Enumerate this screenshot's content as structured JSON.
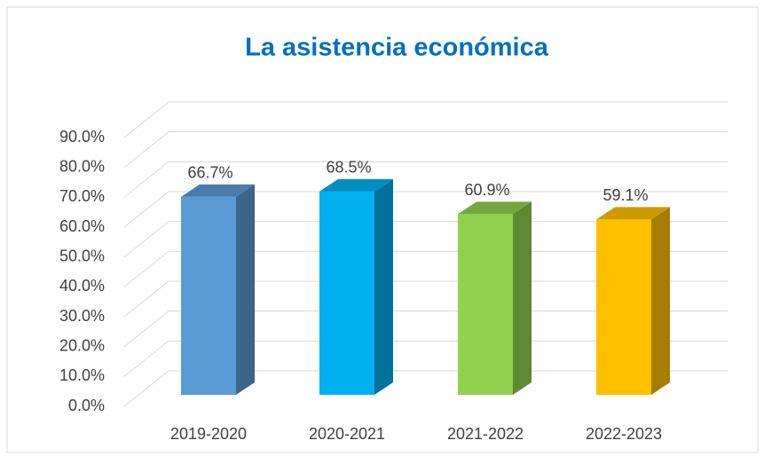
{
  "chart_data": {
    "type": "bar3d",
    "title": "La asistencia económica",
    "categories": [
      "2019-2020",
      "2020-2021",
      "2021-2022",
      "2022-2023"
    ],
    "values": [
      66.7,
      68.5,
      60.9,
      59.1
    ],
    "value_labels": [
      "66.7%",
      "68.5%",
      "60.9%",
      "59.1%"
    ],
    "colors": [
      "#5b9bd5",
      "#00b0f0",
      "#92d050",
      "#ffc000"
    ],
    "ylim": [
      0,
      90
    ],
    "yticks": [
      {
        "value": 0,
        "label": "0.0%"
      },
      {
        "value": 10,
        "label": "10.0%"
      },
      {
        "value": 20,
        "label": "20.0%"
      },
      {
        "value": 30,
        "label": "30.0%"
      },
      {
        "value": 40,
        "label": "40.0%"
      },
      {
        "value": 50,
        "label": "50.0%"
      },
      {
        "value": 60,
        "label": "60.0%"
      },
      {
        "value": 70,
        "label": "70.0%"
      },
      {
        "value": 80,
        "label": "80.0%"
      },
      {
        "value": 90,
        "label": "90.0%"
      }
    ],
    "grid": true
  }
}
